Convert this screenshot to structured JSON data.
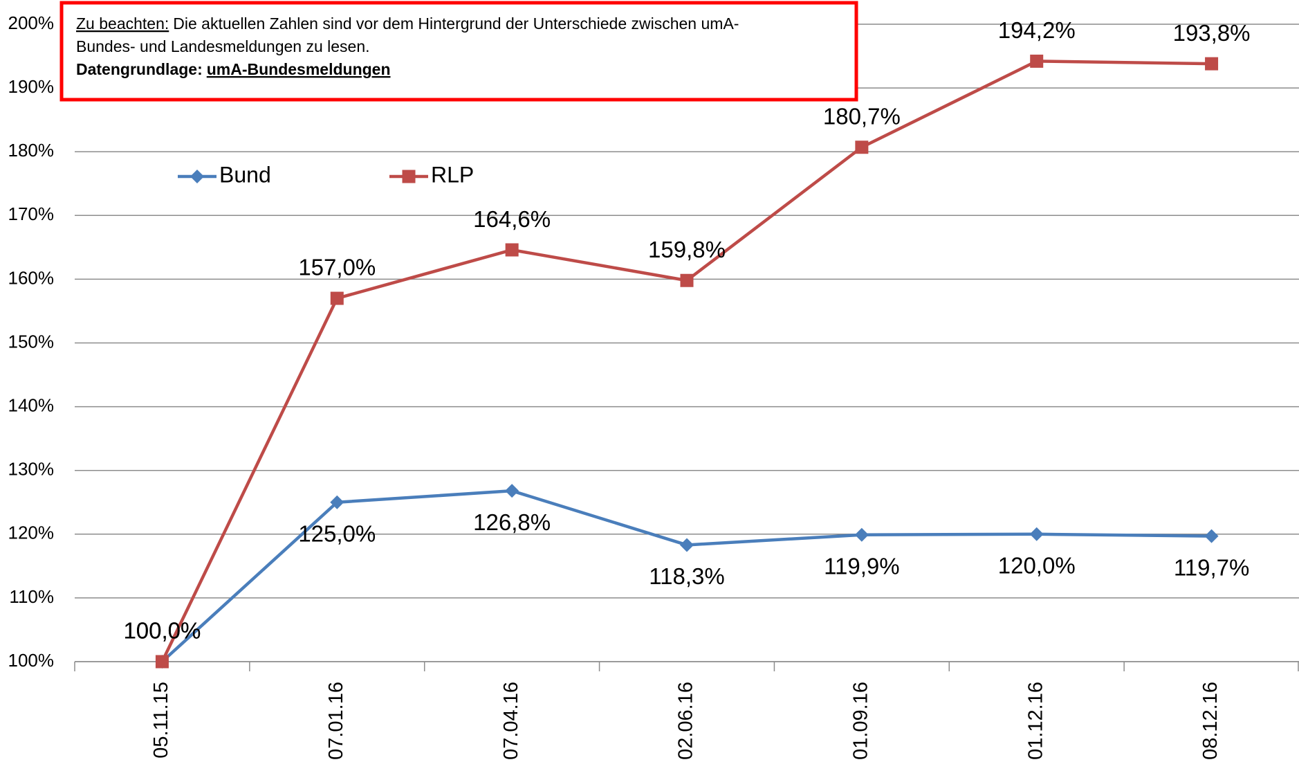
{
  "chart_data": {
    "type": "line",
    "categories": [
      "05.11.15",
      "07.01.16",
      "07.04.16",
      "02.06.16",
      "01.09.16",
      "01.12.16",
      "08.12.16"
    ],
    "series": [
      {
        "name": "Bund",
        "color": "#4a7ebb",
        "marker": "diamond",
        "values": [
          100,
          125,
          126.8,
          118.3,
          119.9,
          120,
          119.7
        ],
        "value_labels": [
          "100,0%",
          "125,0%",
          "126,8%",
          "118,3%",
          "119,9%",
          "120,0%",
          "119,7%"
        ]
      },
      {
        "name": "RLP",
        "color": "#be4b48",
        "marker": "square",
        "values": [
          100,
          157,
          164.6,
          159.8,
          180.7,
          194.2,
          193.8
        ],
        "value_labels": [
          "100,0%",
          "157,0%",
          "164,6%",
          "159,8%",
          "180,7%",
          "194,2%",
          "193,8%"
        ]
      }
    ],
    "ylim": [
      100,
      200
    ],
    "yticks": [
      {
        "value": 100,
        "label": "100%"
      },
      {
        "value": 110,
        "label": "110%"
      },
      {
        "value": 120,
        "label": "120%"
      },
      {
        "value": 130,
        "label": "130%"
      },
      {
        "value": 140,
        "label": "140%"
      },
      {
        "value": 150,
        "label": "150%"
      },
      {
        "value": 160,
        "label": "160%"
      },
      {
        "value": 170,
        "label": "170%"
      },
      {
        "value": 180,
        "label": "180%"
      },
      {
        "value": 190,
        "label": "190%"
      },
      {
        "value": 200,
        "label": "200%"
      }
    ],
    "grid": true,
    "legend_position": "upper left",
    "annotation": {
      "note_label": "Zu beachten:",
      "note_text": "Die aktuellen Zahlen sind vor dem Hintergrund der Unterschiede zwischen umA-",
      "note_text_2": "Bundes- und Landesmeldungen zu lesen.",
      "source_label": "Datengrundlage:",
      "source_value": "umA-Bundesmeldungen",
      "border_color": "#ff0000"
    }
  }
}
